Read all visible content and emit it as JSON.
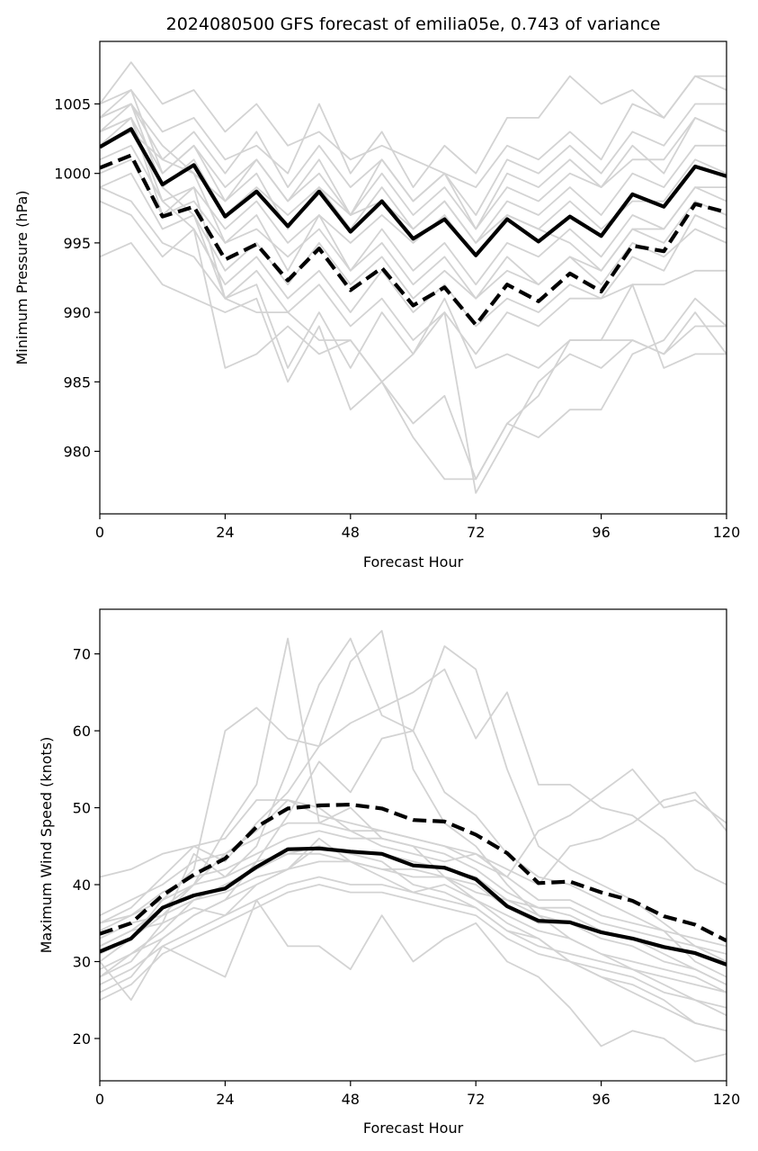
{
  "chart_data": [
    {
      "type": "line",
      "title": "2024080500 GFS forecast of emilia05e, 0.743 of variance",
      "xlabel": "Forecast Hour",
      "ylabel": "Minimum Pressure (hPa)",
      "xlim": [
        0,
        120
      ],
      "ylim": [
        975.5,
        1009.5
      ],
      "xticks": [
        0,
        24,
        48,
        72,
        96,
        120
      ],
      "yticks": [
        980,
        985,
        990,
        995,
        1000,
        1005
      ],
      "grid": false,
      "x": [
        0,
        6,
        12,
        18,
        24,
        30,
        36,
        42,
        48,
        54,
        60,
        66,
        72,
        78,
        84,
        90,
        96,
        102,
        108,
        114,
        120
      ],
      "series": [
        {
          "style": "mean",
          "color": "#000000",
          "values": [
            1001.9,
            1003.2,
            999.2,
            1000.6,
            996.9,
            998.7,
            996.2,
            998.7,
            995.8,
            998.0,
            995.3,
            996.7,
            994.1,
            996.7,
            995.1,
            996.9,
            995.5,
            998.5,
            997.6,
            1000.5,
            999.8
          ]
        },
        {
          "style": "dashed",
          "color": "#000000",
          "values": [
            1000.4,
            1001.3,
            996.9,
            997.6,
            993.8,
            994.9,
            992.3,
            994.6,
            991.6,
            993.2,
            990.5,
            991.8,
            989.1,
            992.0,
            990.8,
            992.8,
            991.5,
            994.8,
            994.4,
            997.8,
            997.2
          ]
        },
        {
          "style": "member",
          "color": "#d3d3d3",
          "values": [
            1005,
            1008,
            1005,
            1006,
            1003,
            1005,
            1002,
            1003,
            1001,
            1002,
            1001,
            1000,
            999,
            1002,
            1001,
            1003,
            1001,
            1005,
            1004,
            1007,
            1007
          ]
        },
        {
          "style": "member",
          "color": "#d3d3d3",
          "values": [
            1004,
            1006,
            1003,
            1004,
            1001,
            1002,
            1000,
            1005,
            1000,
            1003,
            999,
            1002,
            1000,
            1004,
            1004,
            1007,
            1005,
            1006,
            1004,
            1007,
            1006
          ]
        },
        {
          "style": "member",
          "color": "#d3d3d3",
          "values": [
            1003,
            1005,
            1001,
            1003,
            1000,
            1003,
            999,
            1002,
            999,
            1001,
            998,
            1000,
            997,
            1001,
            1000,
            1002,
            1000,
            1003,
            1002,
            1005,
            1005
          ]
        },
        {
          "style": "member",
          "color": "#d3d3d3",
          "values": [
            1003,
            1004,
            1000,
            1002,
            999,
            1001,
            998,
            1001,
            997,
            1000,
            997,
            999,
            996,
            999,
            998,
            1000,
            999,
            1001,
            1001,
            1004,
            1003
          ]
        },
        {
          "style": "member",
          "color": "#d3d3d3",
          "values": [
            1002,
            1003,
            999,
            1001,
            997,
            999,
            997,
            999,
            996,
            999,
            996,
            998,
            995,
            998,
            997,
            999,
            997,
            1000,
            999,
            1002,
            1002
          ]
        },
        {
          "style": "member",
          "color": "#d3d3d3",
          "values": [
            1001,
            1002,
            998,
            999,
            996,
            998,
            995,
            997,
            995,
            997,
            995,
            997,
            994,
            997,
            996,
            998,
            996,
            998,
            998,
            1001,
            1000
          ]
        },
        {
          "style": "member",
          "color": "#d3d3d3",
          "values": [
            1000,
            1001,
            997,
            998,
            995,
            996,
            994,
            996,
            993,
            996,
            993,
            995,
            992,
            995,
            994,
            996,
            994,
            997,
            996,
            999,
            999
          ]
        },
        {
          "style": "member",
          "color": "#d3d3d3",
          "values": [
            999,
            1000,
            996,
            997,
            993,
            995,
            992,
            995,
            992,
            994,
            991,
            993,
            991,
            993,
            992,
            994,
            993,
            996,
            995,
            998,
            997
          ]
        },
        {
          "style": "member",
          "color": "#d3d3d3",
          "values": [
            998,
            997,
            994,
            996,
            992,
            994,
            991,
            993,
            990,
            993,
            990,
            992,
            989,
            991,
            990,
            992,
            991,
            994,
            993,
            997,
            996
          ]
        },
        {
          "style": "member",
          "color": "#d3d3d3",
          "values": [
            1004,
            1005,
            1002,
            1000,
            998,
            1000,
            996,
            999,
            997,
            998,
            996,
            998,
            995,
            997,
            996,
            995,
            993,
            996,
            996,
            999,
            998
          ]
        },
        {
          "style": "member",
          "color": "#d3d3d3",
          "values": [
            1002,
            1004,
            997,
            999,
            991,
            993,
            990,
            992,
            989,
            991,
            988,
            990,
            987,
            990,
            989,
            991,
            991,
            992,
            992,
            993,
            993
          ]
        },
        {
          "style": "member",
          "color": "#d3d3d3",
          "values": [
            1003,
            1004,
            998,
            996,
            986,
            987,
            989,
            987,
            988,
            985,
            987,
            991,
            986,
            987,
            986,
            988,
            988,
            988,
            987,
            989,
            989
          ]
        },
        {
          "style": "member",
          "color": "#d3d3d3",
          "values": [
            999,
            998,
            995,
            994,
            991,
            990,
            990,
            988,
            988,
            985,
            982,
            984,
            978,
            982,
            984,
            988,
            988,
            992,
            986,
            987,
            987
          ]
        },
        {
          "style": "member",
          "color": "#d3d3d3",
          "values": [
            994,
            995,
            992,
            991,
            990,
            991,
            985,
            989,
            983,
            985,
            981,
            978,
            978,
            982,
            981,
            983,
            983,
            987,
            988,
            991,
            989
          ]
        },
        {
          "style": "member",
          "color": "#d3d3d3",
          "values": [
            1004,
            1005,
            999,
            997,
            991,
            992,
            986,
            990,
            986,
            990,
            987,
            990,
            977,
            981,
            985,
            987,
            986,
            988,
            987,
            990,
            987
          ]
        },
        {
          "style": "member",
          "color": "#d3d3d3",
          "values": [
            1005,
            1006,
            1000,
            1002,
            998,
            1001,
            998,
            1000,
            997,
            1001,
            998,
            1000,
            996,
            1000,
            999,
            1001,
            999,
            1002,
            1000,
            1004,
            1003
          ]
        },
        {
          "style": "member",
          "color": "#d3d3d3",
          "values": [
            1002,
            1003,
            1001,
            1000,
            995,
            997,
            993,
            997,
            993,
            995,
            992,
            994,
            991,
            994,
            992,
            994,
            992,
            995,
            994,
            996,
            995
          ]
        }
      ]
    },
    {
      "type": "line",
      "title": "",
      "xlabel": "Forecast Hour",
      "ylabel": "Maximum Wind Speed (knots)",
      "xlim": [
        0,
        120
      ],
      "ylim": [
        14.5,
        75.8
      ],
      "xticks": [
        0,
        24,
        48,
        72,
        96,
        120
      ],
      "yticks": [
        20,
        30,
        40,
        50,
        60,
        70
      ],
      "grid": false,
      "x": [
        0,
        6,
        12,
        18,
        24,
        30,
        36,
        42,
        48,
        54,
        60,
        66,
        72,
        78,
        84,
        90,
        96,
        102,
        108,
        114,
        120
      ],
      "series": [
        {
          "style": "mean",
          "color": "#000000",
          "values": [
            31.3,
            33.0,
            37.0,
            38.6,
            39.5,
            42.3,
            44.6,
            44.7,
            44.3,
            44.0,
            42.5,
            42.2,
            40.7,
            37.2,
            35.3,
            35.1,
            33.8,
            33.0,
            31.9,
            31.1,
            29.6
          ]
        },
        {
          "style": "dashed",
          "color": "#000000",
          "values": [
            33.6,
            35.0,
            38.6,
            41.3,
            43.4,
            47.5,
            49.9,
            50.3,
            50.4,
            49.9,
            48.4,
            48.2,
            46.5,
            44.1,
            40.2,
            40.4,
            39.0,
            37.9,
            35.9,
            34.8,
            32.7
          ]
        },
        {
          "style": "member",
          "color": "#d3d3d3",
          "values": [
            30,
            33,
            38,
            42,
            60,
            63,
            59,
            58,
            69,
            73,
            55,
            48,
            45,
            40,
            36,
            33,
            31,
            29,
            27,
            25,
            23
          ]
        },
        {
          "style": "member",
          "color": "#d3d3d3",
          "values": [
            32,
            34,
            37,
            40,
            47,
            53,
            72,
            48,
            50,
            46,
            45,
            41,
            38,
            35,
            33,
            30,
            28,
            26,
            24,
            22,
            21
          ]
        },
        {
          "style": "member",
          "color": "#d3d3d3",
          "values": [
            28,
            30,
            35,
            44,
            41,
            45,
            55,
            66,
            72,
            62,
            60,
            71,
            68,
            55,
            45,
            42,
            40,
            38,
            35,
            32,
            30
          ]
        },
        {
          "style": "member",
          "color": "#d3d3d3",
          "values": [
            35,
            37,
            41,
            45,
            43,
            48,
            52,
            58,
            61,
            63,
            65,
            68,
            59,
            65,
            53,
            53,
            50,
            49,
            46,
            42,
            40
          ]
        },
        {
          "style": "member",
          "color": "#d3d3d3",
          "values": [
            26,
            28,
            33,
            36,
            38,
            43,
            49,
            56,
            52,
            59,
            60,
            52,
            49,
            44,
            41,
            40,
            38,
            36,
            34,
            30,
            28
          ]
        },
        {
          "style": "member",
          "color": "#d3d3d3",
          "values": [
            41,
            42,
            44,
            45,
            46,
            51,
            51,
            50,
            47,
            45,
            44,
            43,
            44,
            42,
            40,
            45,
            46,
            48,
            51,
            52,
            47
          ]
        },
        {
          "style": "member",
          "color": "#d3d3d3",
          "values": [
            33,
            35,
            36,
            40,
            44,
            47,
            51,
            49,
            48,
            47,
            46,
            45,
            43,
            41,
            47,
            49,
            52,
            55,
            50,
            51,
            48
          ]
        },
        {
          "style": "member",
          "color": "#d3d3d3",
          "values": [
            29,
            31,
            34,
            38,
            40,
            42,
            44,
            45,
            44,
            44,
            43,
            42,
            41,
            38,
            37,
            36,
            34,
            33,
            31,
            29,
            27
          ]
        },
        {
          "style": "member",
          "color": "#d3d3d3",
          "values": [
            31,
            33,
            36,
            38,
            39,
            41,
            42,
            43,
            43,
            42,
            41,
            41,
            40,
            37,
            35,
            35,
            33,
            32,
            30,
            29,
            27
          ]
        },
        {
          "style": "member",
          "color": "#d3d3d3",
          "values": [
            34,
            36,
            39,
            41,
            42,
            44,
            46,
            47,
            46,
            46,
            45,
            44,
            42,
            39,
            37,
            37,
            35,
            34,
            33,
            32,
            31
          ]
        },
        {
          "style": "member",
          "color": "#d3d3d3",
          "values": [
            27,
            29,
            32,
            34,
            36,
            38,
            40,
            41,
            40,
            40,
            39,
            38,
            37,
            34,
            32,
            31,
            30,
            29,
            28,
            27,
            26
          ]
        },
        {
          "style": "member",
          "color": "#d3d3d3",
          "values": [
            36,
            38,
            40,
            43,
            44,
            46,
            48,
            48,
            47,
            47,
            46,
            45,
            44,
            41,
            38,
            38,
            36,
            35,
            34,
            33,
            32
          ]
        },
        {
          "style": "member",
          "color": "#d3d3d3",
          "values": [
            25,
            27,
            31,
            33,
            35,
            37,
            39,
            40,
            39,
            39,
            38,
            37,
            36,
            33,
            31,
            30,
            29,
            28,
            26,
            25,
            24
          ]
        },
        {
          "style": "member",
          "color": "#d3d3d3",
          "values": [
            30,
            25,
            32,
            30,
            28,
            38,
            32,
            32,
            29,
            36,
            30,
            33,
            35,
            30,
            28,
            24,
            19,
            21,
            20,
            17,
            18
          ]
        },
        {
          "style": "member",
          "color": "#d3d3d3",
          "values": [
            32,
            34,
            35,
            37,
            36,
            40,
            42,
            46,
            43,
            41,
            39,
            40,
            38,
            36,
            34,
            33,
            31,
            30,
            29,
            28,
            26
          ]
        },
        {
          "style": "member",
          "color": "#d3d3d3",
          "values": [
            28,
            31,
            33,
            36,
            38,
            40,
            42,
            45,
            44,
            43,
            40,
            39,
            37,
            34,
            33,
            30,
            28,
            27,
            25,
            22,
            21
          ]
        },
        {
          "style": "member",
          "color": "#d3d3d3",
          "values": [
            35,
            36,
            38,
            40,
            41,
            43,
            44,
            44,
            43,
            42,
            42,
            41,
            39,
            38,
            36,
            35,
            34,
            33,
            32,
            31,
            30
          ]
        }
      ]
    }
  ]
}
